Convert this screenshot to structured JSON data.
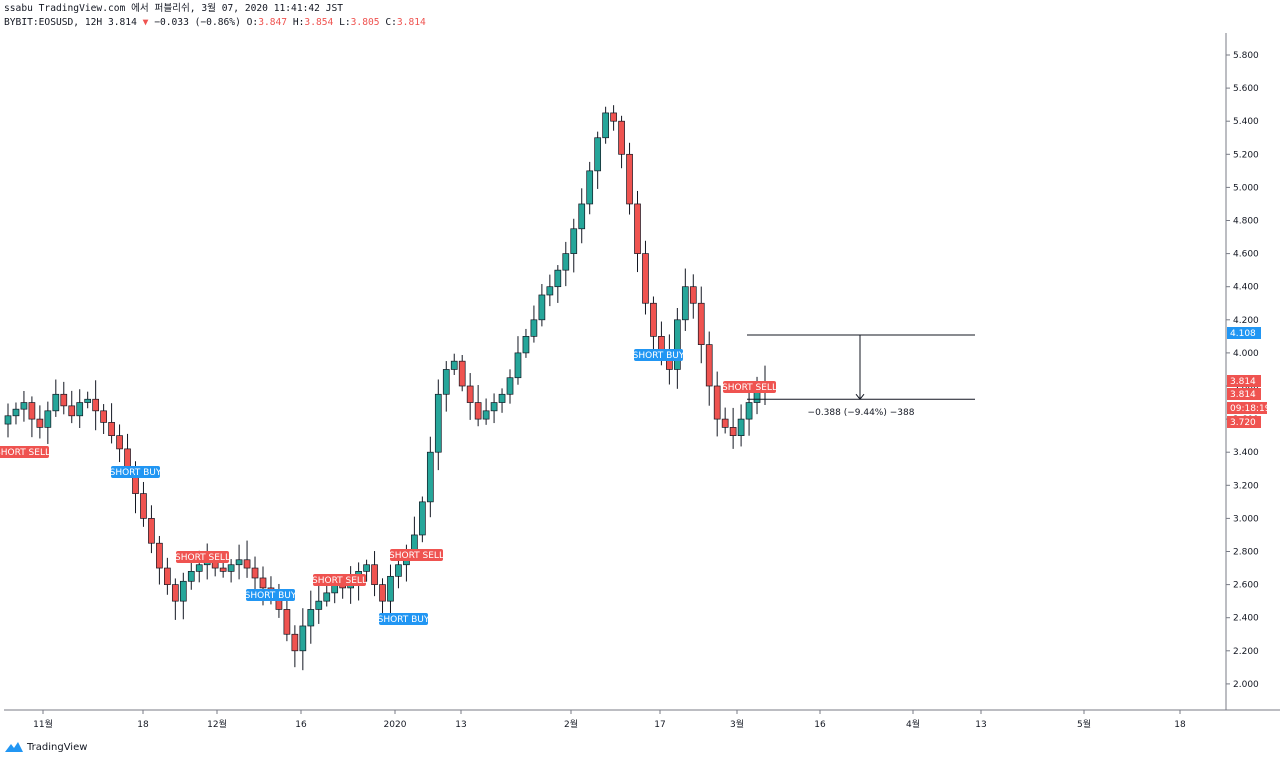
{
  "header": {
    "line1": "ssabu TradingView.com 에서 퍼블리쉬, 3월 07, 2020 11:41:42 JST",
    "symbol_line": "BYBIT:EOSUSD, 12H 3.814",
    "arrow": "▼",
    "change": "−0.033 (−0.86%)",
    "o_label": "O:",
    "o_value": "3.847",
    "h_label": "H:",
    "h_value": "3.854",
    "l_label": "L:",
    "l_value": "3.805",
    "c_label": "C:",
    "c_value": "3.814"
  },
  "colors": {
    "up": "#26a69a",
    "down": "#ef5350",
    "candle": "#131722",
    "sell_badge": "#ef5350",
    "buy_badge": "#2196f3",
    "axis_line": "#787b86"
  },
  "price_axis": {
    "ticks": [
      "5.800",
      "5.600",
      "5.400",
      "5.200",
      "5.000",
      "4.800",
      "4.600",
      "4.400",
      "4.200",
      "4.000",
      "3.800",
      "3.600",
      "3.400",
      "3.200",
      "3.000",
      "2.800",
      "2.600",
      "2.400",
      "2.200",
      "2.000"
    ],
    "tags": [
      {
        "text": "4.108",
        "price": 4.108,
        "color": "#2196f3"
      },
      {
        "text": "3.814",
        "price": 3.814,
        "color": "#ef5350"
      },
      {
        "text": "3.814",
        "price": 3.814,
        "color": "#ef5350"
      },
      {
        "text": "09:18:19",
        "price": 3.814,
        "color": "#ef5350"
      },
      {
        "text": "3.720",
        "price": 3.72,
        "color": "#ef5350"
      }
    ]
  },
  "time_axis": {
    "labels": [
      "11월",
      "18",
      "12월",
      "16",
      "2020",
      "13",
      "2월",
      "17",
      "3월",
      "16",
      "4월",
      "13",
      "5월",
      "18"
    ]
  },
  "measure": {
    "label": "−0.388 (−9.44%) −388",
    "from_price": 4.108,
    "to_price": 3.72
  },
  "signals": [
    {
      "text": "SHORT SELL",
      "type": "sell",
      "index": 0
    },
    {
      "text": "SHORT BUY",
      "type": "buy",
      "index": 1
    },
    {
      "text": "SHORT SELL",
      "type": "sell",
      "index": 2
    },
    {
      "text": "SHORT BUY",
      "type": "buy",
      "index": 3
    },
    {
      "text": "SHORT SELL",
      "type": "sell",
      "index": 4
    },
    {
      "text": "SHORT SELL",
      "type": "sell",
      "index": 5
    },
    {
      "text": "SHORT BUY",
      "type": "buy",
      "index": 6
    },
    {
      "text": "SHORT BUY",
      "type": "buy",
      "index": 7
    },
    {
      "text": "SHORT SELL",
      "type": "sell",
      "index": 8
    }
  ],
  "chart_data": {
    "type": "candlestick",
    "symbol": "BYBIT:EOSUSD",
    "interval": "12H",
    "ylim": [
      1.85,
      5.95
    ],
    "close_series": [
      3.62,
      3.66,
      3.7,
      3.6,
      3.55,
      3.65,
      3.75,
      3.68,
      3.62,
      3.7,
      3.72,
      3.65,
      3.58,
      3.5,
      3.42,
      3.3,
      3.15,
      3.0,
      2.85,
      2.7,
      2.6,
      2.5,
      2.62,
      2.68,
      2.72,
      2.75,
      2.7,
      2.68,
      2.72,
      2.75,
      2.7,
      2.64,
      2.58,
      2.55,
      2.45,
      2.3,
      2.2,
      2.35,
      2.45,
      2.5,
      2.55,
      2.6,
      2.58,
      2.62,
      2.68,
      2.72,
      2.6,
      2.5,
      2.65,
      2.72,
      2.8,
      2.9,
      3.1,
      3.4,
      3.75,
      3.9,
      3.95,
      3.8,
      3.7,
      3.6,
      3.65,
      3.7,
      3.75,
      3.85,
      4.0,
      4.1,
      4.2,
      4.35,
      4.4,
      4.5,
      4.6,
      4.75,
      4.9,
      5.1,
      5.3,
      5.45,
      5.4,
      5.2,
      4.9,
      4.6,
      4.3,
      4.1,
      4.0,
      3.9,
      4.2,
      4.4,
      4.3,
      4.05,
      3.8,
      3.6,
      3.55,
      3.5,
      3.6,
      3.7,
      3.78,
      3.814
    ],
    "price_ticks": [
      "5.800",
      "5.600",
      "5.400",
      "5.200",
      "5.000",
      "4.800",
      "4.600",
      "4.400",
      "4.200",
      "4.000",
      "3.800",
      "3.600",
      "3.400",
      "3.200",
      "3.000",
      "2.800",
      "2.600",
      "2.400",
      "2.200",
      "2.000"
    ],
    "x_tick_labels": [
      "11월",
      "18",
      "12월",
      "16",
      "2020",
      "13",
      "2월",
      "17",
      "3월",
      "16",
      "4월",
      "13",
      "5월",
      "18"
    ],
    "last_price": 3.814
  }
}
